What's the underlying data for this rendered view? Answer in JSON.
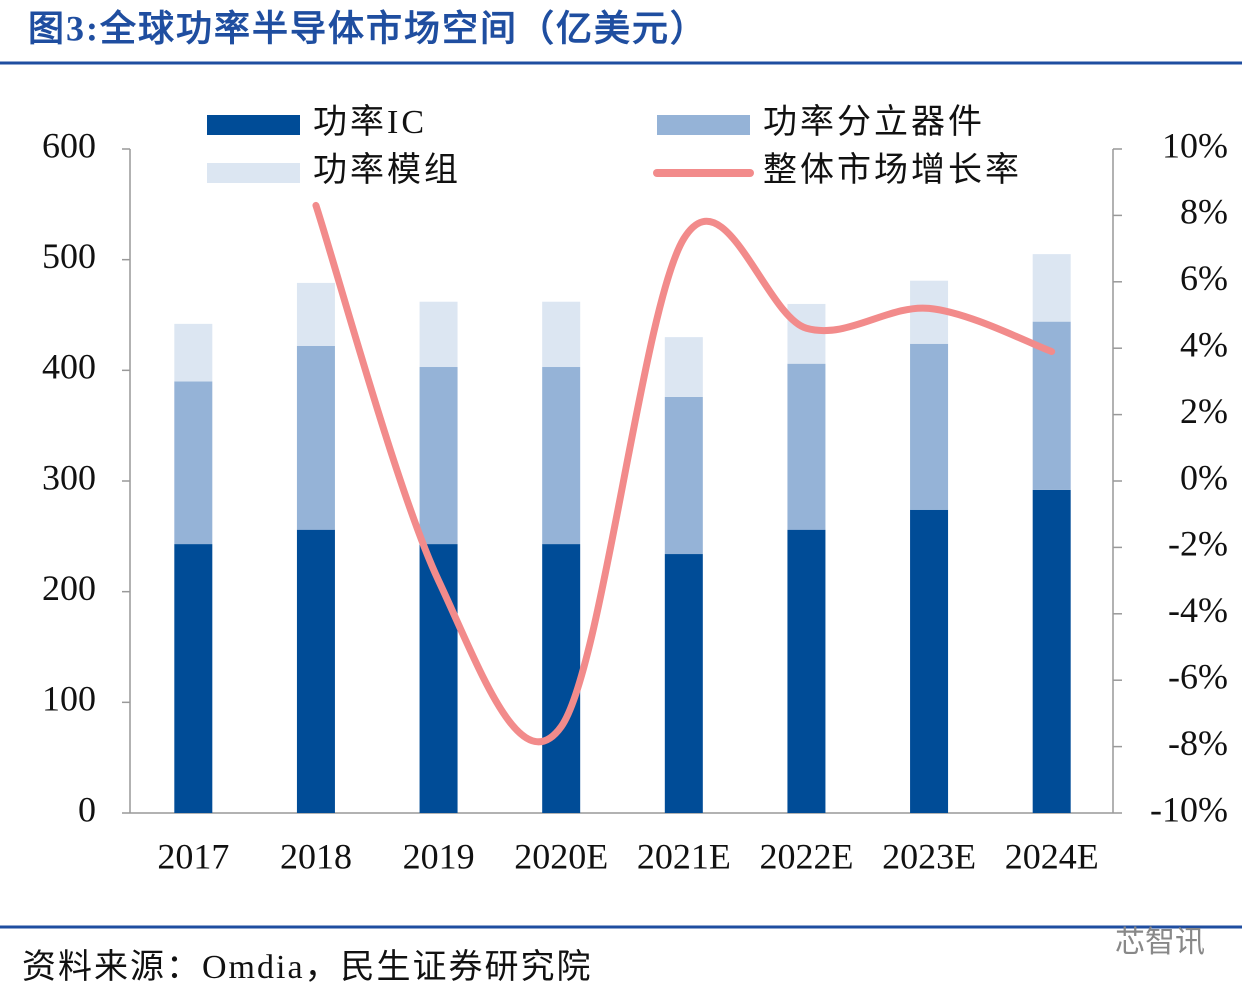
{
  "chart_data": {
    "type": "stacked-bar-line",
    "title": "图3:全球功率半导体市场空间（亿美元）",
    "source": "资料来源：Omdia，民生证券研究院",
    "watermark": "芯智讯",
    "categories": [
      "2017",
      "2018",
      "2019",
      "2020E",
      "2021E",
      "2022E",
      "2023E",
      "2024E"
    ],
    "series": [
      {
        "name": "功率IC",
        "color": "#004c97",
        "values": [
          243,
          256,
          243,
          243,
          234,
          256,
          274,
          292
        ]
      },
      {
        "name": "功率分立器件",
        "color": "#95b3d7",
        "values": [
          147,
          166,
          160,
          160,
          142,
          150,
          150,
          152
        ]
      },
      {
        "name": "功率模组",
        "color": "#dce6f2",
        "values": [
          52,
          57,
          59,
          59,
          54,
          54,
          57,
          61
        ]
      },
      {
        "name": "整体市场增长率",
        "color": "#f28b8b",
        "axis": "y2",
        "type": "line",
        "values": [
          null,
          8.3,
          -3.0,
          -7.4,
          7.3,
          4.6,
          5.2,
          3.9
        ]
      }
    ],
    "ylim": [
      0,
      600
    ],
    "yticks": [
      0,
      100,
      200,
      300,
      400,
      500,
      600
    ],
    "y2lim": [
      -10,
      10
    ],
    "y2ticks": [
      {
        "value": -10,
        "label": "-10%"
      },
      {
        "value": -8,
        "label": "-8%"
      },
      {
        "value": -6,
        "label": "-6%"
      },
      {
        "value": -4,
        "label": "-4%"
      },
      {
        "value": -2,
        "label": "-2%"
      },
      {
        "value": 0,
        "label": "0%"
      },
      {
        "value": 2,
        "label": "2%"
      },
      {
        "value": 4,
        "label": "4%"
      },
      {
        "value": 6,
        "label": "6%"
      },
      {
        "value": 8,
        "label": "8%"
      },
      {
        "value": 10,
        "label": "10%"
      }
    ],
    "grid": false,
    "legend": "top"
  }
}
